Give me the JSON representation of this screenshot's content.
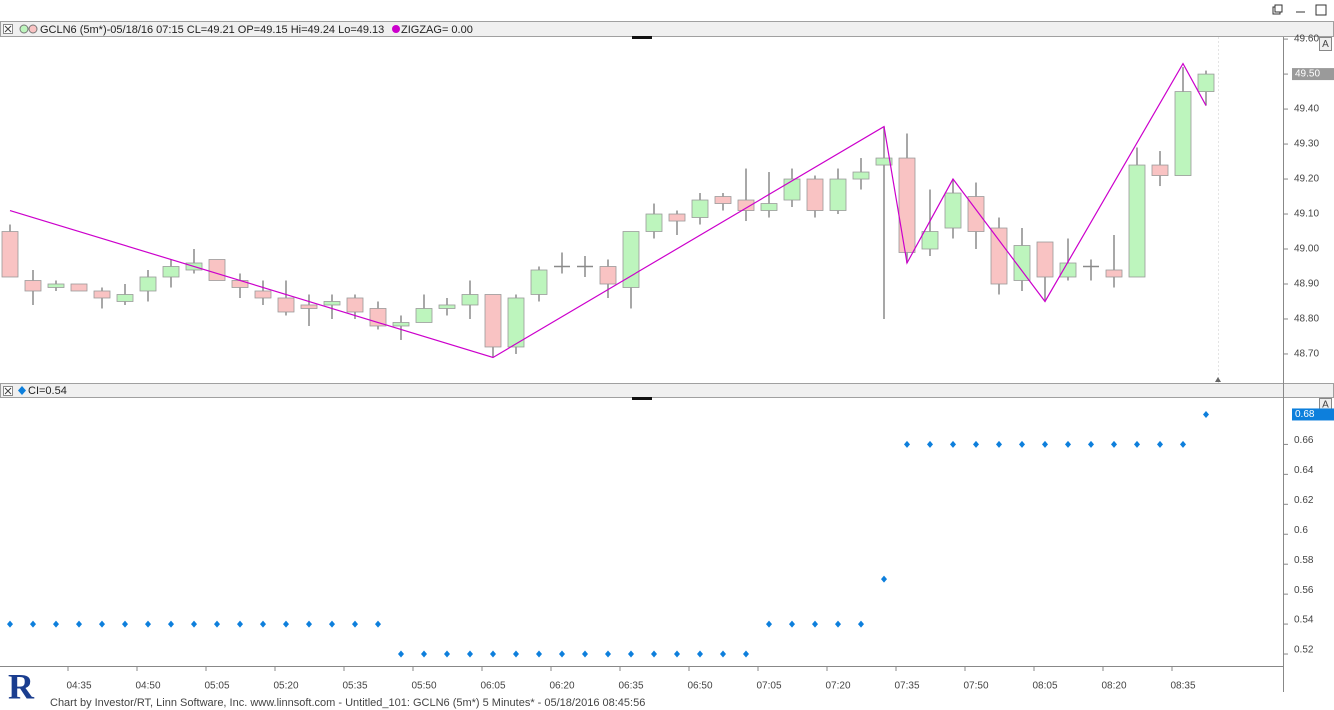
{
  "ui": {
    "autoscale_button": "A",
    "logo": "R",
    "footer": "Chart by Investor/RT, Linn Software, Inc. www.linnsoft.com - Untitled_101: GCLN6 (5m*) 5 Minutes* - 05/18/2016 08:45:56"
  },
  "chart_data": [
    {
      "type": "candlestick",
      "title": "GCLN6 (5m*)-05/18/16 07:15 CL=49.21 OP=49.15 Hi=49.24 Lo=49.13",
      "open": [
        49.05,
        48.91,
        48.89,
        48.9,
        48.88,
        48.85,
        48.88,
        48.92,
        48.94,
        48.97,
        48.91,
        48.88,
        48.86,
        48.84,
        48.84,
        48.86,
        48.83,
        48.78,
        48.79,
        48.83,
        48.84,
        48.87,
        48.72,
        48.87,
        48.95,
        48.95,
        48.95,
        48.89,
        49.05,
        49.1,
        49.09,
        49.15,
        49.14,
        49.11,
        49.14,
        49.2,
        49.11,
        49.2,
        49.24,
        49.26,
        49.0,
        49.06,
        49.15,
        49.06,
        48.91,
        49.02,
        48.92,
        48.95,
        48.94,
        48.92,
        49.24,
        49.21,
        49.45
      ],
      "high": [
        49.07,
        48.94,
        48.91,
        48.9,
        48.89,
        48.9,
        48.94,
        48.97,
        49.0,
        48.97,
        48.93,
        48.91,
        48.91,
        48.87,
        48.87,
        48.87,
        48.85,
        48.81,
        48.87,
        48.86,
        48.91,
        48.87,
        48.87,
        48.95,
        48.99,
        48.98,
        48.97,
        49.05,
        49.13,
        49.11,
        49.16,
        49.16,
        49.23,
        49.22,
        49.23,
        49.21,
        49.23,
        49.26,
        49.35,
        49.33,
        49.17,
        49.2,
        49.19,
        49.09,
        49.06,
        49.02,
        49.03,
        48.97,
        49.04,
        49.29,
        49.28,
        49.52,
        49.51
      ],
      "low": [
        48.92,
        48.84,
        48.88,
        48.88,
        48.83,
        48.84,
        48.85,
        48.89,
        48.93,
        48.91,
        48.86,
        48.84,
        48.81,
        48.78,
        48.8,
        48.8,
        48.77,
        48.74,
        48.79,
        48.81,
        48.8,
        48.69,
        48.7,
        48.85,
        48.93,
        48.92,
        48.86,
        48.83,
        49.03,
        49.04,
        49.07,
        49.11,
        49.08,
        49.09,
        49.12,
        49.09,
        49.1,
        49.17,
        48.8,
        48.96,
        48.98,
        49.03,
        49.0,
        48.87,
        48.88,
        48.85,
        48.91,
        48.91,
        48.89,
        48.92,
        49.18,
        49.21,
        49.41
      ],
      "close": [
        48.92,
        48.88,
        48.9,
        48.88,
        48.86,
        48.87,
        48.92,
        48.95,
        48.96,
        48.91,
        48.89,
        48.86,
        48.82,
        48.83,
        48.85,
        48.82,
        48.78,
        48.79,
        48.83,
        48.84,
        48.87,
        48.72,
        48.86,
        48.94,
        48.95,
        48.95,
        48.9,
        49.05,
        49.1,
        49.08,
        49.14,
        49.13,
        49.11,
        49.13,
        49.2,
        49.11,
        49.2,
        49.22,
        49.26,
        48.99,
        49.05,
        49.16,
        49.05,
        48.9,
        49.01,
        48.92,
        48.96,
        48.95,
        48.92,
        49.24,
        49.21,
        49.45,
        49.5
      ],
      "up_color": "#bdf5bd",
      "down_color": "#f9c3c3",
      "wick_color": "#8a8a8a",
      "ylim": [
        48.617,
        49.606
      ],
      "yticks": [
        {
          "value": 49.6,
          "label": "49.60"
        },
        {
          "value": 49.5,
          "label": "49.50"
        },
        {
          "value": 49.4,
          "label": "49.40"
        },
        {
          "value": 49.3,
          "label": "49.30"
        },
        {
          "value": 49.2,
          "label": "49.20"
        },
        {
          "value": 49.1,
          "label": "49.10"
        },
        {
          "value": 49.0,
          "label": "49.00"
        },
        {
          "value": 48.9,
          "label": "48.90"
        },
        {
          "value": 48.8,
          "label": "48.80"
        },
        {
          "value": 48.7,
          "label": "48.70"
        }
      ],
      "last_value": {
        "value": 49.5,
        "label": "49.50"
      },
      "overlay": {
        "type": "line",
        "label": "ZIGZAG= 0.00",
        "color": "#cc00cc",
        "x": [
          0,
          21,
          38,
          39,
          41,
          45,
          51,
          52
        ],
        "values": [
          49.11,
          48.69,
          49.35,
          48.96,
          49.2,
          48.85,
          49.53,
          49.41
        ]
      }
    },
    {
      "type": "scatter",
      "title": "CI=0.54",
      "color": "#0d7fdc",
      "categories": [
        null,
        null,
        null,
        "04:35",
        null,
        null,
        "04:50",
        null,
        null,
        "05:05",
        null,
        null,
        "05:20",
        null,
        null,
        "05:35",
        null,
        null,
        "05:50",
        null,
        null,
        "06:05",
        null,
        null,
        "06:20",
        null,
        null,
        "06:35",
        null,
        null,
        "06:50",
        null,
        null,
        "07:05",
        null,
        null,
        "07:20",
        null,
        null,
        "07:35",
        null,
        null,
        "07:50",
        null,
        null,
        "08:05",
        null,
        null,
        "08:20",
        null,
        null,
        "08:35",
        null
      ],
      "values": [
        0.54,
        0.54,
        0.54,
        0.54,
        0.54,
        0.54,
        0.54,
        0.54,
        0.54,
        0.54,
        0.54,
        0.54,
        0.54,
        0.54,
        0.54,
        0.54,
        0.54,
        0.52,
        0.52,
        0.52,
        0.52,
        0.52,
        0.52,
        0.52,
        0.52,
        0.52,
        0.52,
        0.52,
        0.52,
        0.52,
        0.52,
        0.52,
        0.52,
        0.54,
        0.54,
        0.54,
        0.54,
        0.54,
        0.57,
        0.66,
        0.66,
        0.66,
        0.66,
        0.66,
        0.66,
        0.66,
        0.66,
        0.66,
        0.66,
        0.66,
        0.66,
        0.66,
        0.68
      ],
      "ylim": [
        0.512,
        0.691
      ],
      "yticks": [
        0.66,
        0.64,
        0.62,
        0.6,
        0.58,
        0.56,
        0.54,
        0.52
      ],
      "last_value": {
        "value": 0.68,
        "label": "0.68"
      }
    }
  ]
}
